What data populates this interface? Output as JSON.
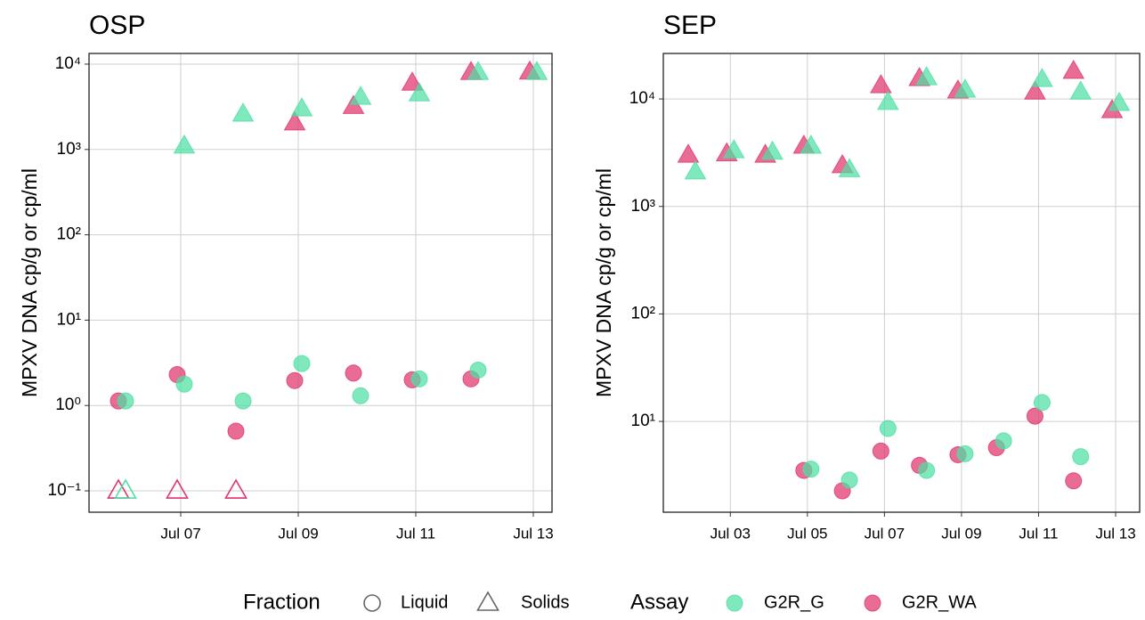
{
  "chart_data": [
    {
      "type": "scatter",
      "title": "OSP",
      "y_label": "MPXV DNA cp/g or cp/ml",
      "log_y": true,
      "grid": true,
      "xlim": [
        "Jul 06",
        "Jul 13"
      ],
      "xticks": [
        "Jul 07",
        "Jul 09",
        "Jul 11",
        "Jul 13"
      ],
      "ylim": [
        0.0562,
        13335
      ],
      "yticks": [
        {
          "value": 0.1,
          "label": "10⁻¹"
        },
        {
          "value": 1,
          "label": "10⁰"
        },
        {
          "value": 10,
          "label": "10¹"
        },
        {
          "value": 100,
          "label": "10²"
        },
        {
          "value": 1000,
          "label": "10³"
        },
        {
          "value": 10000,
          "label": "10⁴"
        }
      ],
      "series": [
        {
          "assay": "G2R_WA",
          "fraction": "Liquid",
          "x": [
            "Jul 06",
            "Jul 07",
            "Jul 08",
            "Jul 09",
            "Jul 10",
            "Jul 11",
            "Jul 12"
          ],
          "values": [
            1.13,
            2.3,
            0.5,
            1.96,
            2.4,
            2.0,
            2.05
          ]
        },
        {
          "assay": "G2R_G",
          "fraction": "Liquid",
          "x": [
            "Jul 06",
            "Jul 07",
            "Jul 08",
            "Jul 09",
            "Jul 10",
            "Jul 11",
            "Jul 12"
          ],
          "values": [
            1.13,
            1.78,
            1.13,
            3.1,
            1.3,
            2.05,
            2.6
          ]
        },
        {
          "assay": "G2R_WA",
          "fraction": "Solids",
          "x": [
            "Jul 06",
            "Jul 07",
            "Jul 08",
            "Jul 09",
            "Jul 10",
            "Jul 11",
            "Jul 12",
            "Jul 13"
          ],
          "values": [
            0.1,
            0.1,
            0.1,
            2050,
            3200,
            6000,
            8000,
            8100
          ],
          "open": [
            true,
            true,
            true,
            false,
            false,
            false,
            false,
            false
          ]
        },
        {
          "assay": "G2R_G",
          "fraction": "Solids",
          "x": [
            "Jul 06",
            "Jul 07",
            "Jul 08",
            "Jul 09",
            "Jul 10",
            "Jul 11",
            "Jul 12",
            "Jul 13"
          ],
          "values": [
            0.1,
            1100,
            2600,
            3000,
            4100,
            4500,
            8000,
            8000
          ],
          "open": [
            true,
            false,
            false,
            false,
            false,
            false,
            false,
            false
          ]
        }
      ]
    },
    {
      "type": "scatter",
      "title": "SEP",
      "y_label": "MPXV DNA cp/g or cp/ml",
      "log_y": true,
      "grid": true,
      "xlim": [
        "Jul 02",
        "Jul 13"
      ],
      "xticks": [
        "Jul 03",
        "Jul 05",
        "Jul 07",
        "Jul 09",
        "Jul 11",
        "Jul 13"
      ],
      "ylim": [
        1.43,
        26500
      ],
      "yticks": [
        {
          "value": 10,
          "label": "10¹"
        },
        {
          "value": 100,
          "label": "10²"
        },
        {
          "value": 1000,
          "label": "10³"
        },
        {
          "value": 10000,
          "label": "10⁴"
        }
      ],
      "series": [
        {
          "assay": "G2R_WA",
          "fraction": "Liquid",
          "x": [
            "Jul 05",
            "Jul 06",
            "Jul 07",
            "Jul 08",
            "Jul 09",
            "Jul 10",
            "Jul 11",
            "Jul 12"
          ],
          "values": [
            3.5,
            2.26,
            5.3,
            3.9,
            4.9,
            5.7,
            11.2,
            2.8
          ]
        },
        {
          "assay": "G2R_G",
          "fraction": "Liquid",
          "x": [
            "Jul 05",
            "Jul 06",
            "Jul 07",
            "Jul 08",
            "Jul 09",
            "Jul 10",
            "Jul 11",
            "Jul 12"
          ],
          "values": [
            3.6,
            2.85,
            8.6,
            3.5,
            5.0,
            6.6,
            15,
            4.7
          ]
        },
        {
          "assay": "G2R_WA",
          "fraction": "Solids",
          "x": [
            "Jul 02",
            "Jul 03",
            "Jul 04",
            "Jul 05",
            "Jul 06",
            "Jul 07",
            "Jul 08",
            "Jul 09",
            "Jul 11",
            "Jul 12",
            "Jul 13"
          ],
          "values": [
            3000,
            3100,
            3000,
            3640,
            2400,
            13300,
            15500,
            11900,
            11600,
            18100,
            7800
          ]
        },
        {
          "assay": "G2R_G",
          "fraction": "Solids",
          "x": [
            "Jul 02",
            "Jul 03",
            "Jul 04",
            "Jul 05",
            "Jul 06",
            "Jul 07",
            "Jul 08",
            "Jul 09",
            "Jul 11",
            "Jul 12",
            "Jul 13"
          ],
          "values": [
            2100,
            3300,
            3200,
            3640,
            2200,
            9300,
            15800,
            12100,
            15200,
            11600,
            9100
          ]
        }
      ]
    }
  ],
  "legend": {
    "fraction_title": "Fraction",
    "fraction_items": [
      {
        "name": "Liquid",
        "shape": "circle"
      },
      {
        "name": "Solids",
        "shape": "triangle"
      }
    ],
    "assay_title": "Assay",
    "assay_items": [
      {
        "name": "G2R_G",
        "color": "#4ddfa4"
      },
      {
        "name": "G2R_WA",
        "color": "#e0336c"
      }
    ]
  }
}
